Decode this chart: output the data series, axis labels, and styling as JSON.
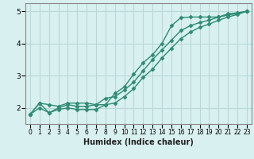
{
  "line1_x": [
    0,
    1,
    2,
    3,
    4,
    5,
    6,
    7,
    8,
    9,
    10,
    11,
    12,
    13,
    14,
    15,
    16,
    17,
    18,
    19,
    20,
    21,
    22,
    23
  ],
  "line1_y": [
    1.8,
    2.15,
    2.1,
    2.05,
    2.15,
    2.15,
    2.15,
    2.1,
    2.1,
    2.45,
    2.65,
    3.05,
    3.4,
    3.65,
    4.0,
    4.55,
    4.8,
    4.82,
    4.82,
    4.82,
    4.82,
    4.92,
    4.95,
    5.0
  ],
  "line2_x": [
    0,
    1,
    2,
    3,
    4,
    5,
    6,
    7,
    8,
    9,
    10,
    11,
    12,
    13,
    14,
    15,
    16,
    17,
    18,
    19,
    20,
    21,
    22,
    23
  ],
  "line2_y": [
    1.8,
    2.15,
    1.85,
    2.0,
    2.1,
    2.05,
    2.05,
    2.1,
    2.3,
    2.35,
    2.55,
    2.8,
    3.15,
    3.5,
    3.8,
    4.1,
    4.4,
    4.55,
    4.65,
    4.72,
    4.82,
    4.88,
    4.93,
    5.0
  ],
  "line3_x": [
    0,
    1,
    2,
    3,
    4,
    5,
    6,
    7,
    8,
    9,
    10,
    11,
    12,
    13,
    14,
    15,
    16,
    17,
    18,
    19,
    20,
    21,
    22,
    23
  ],
  "line3_y": [
    1.8,
    2.0,
    1.85,
    1.95,
    2.0,
    1.95,
    1.95,
    1.95,
    2.1,
    2.15,
    2.35,
    2.6,
    2.95,
    3.2,
    3.55,
    3.85,
    4.15,
    4.35,
    4.5,
    4.6,
    4.72,
    4.82,
    4.9,
    5.0
  ],
  "color": "#2e8b74",
  "bg_color": "#d8f0f0",
  "grid_color": "#b8d8d8",
  "xlabel": "Humidex (Indice chaleur)",
  "xlim": [
    -0.5,
    23.5
  ],
  "ylim": [
    1.5,
    5.25
  ],
  "yticks": [
    2,
    3,
    4,
    5
  ],
  "xticks": [
    0,
    1,
    2,
    3,
    4,
    5,
    6,
    7,
    8,
    9,
    10,
    11,
    12,
    13,
    14,
    15,
    16,
    17,
    18,
    19,
    20,
    21,
    22,
    23
  ],
  "marker": "D",
  "markersize": 2.5,
  "linewidth": 1.0
}
